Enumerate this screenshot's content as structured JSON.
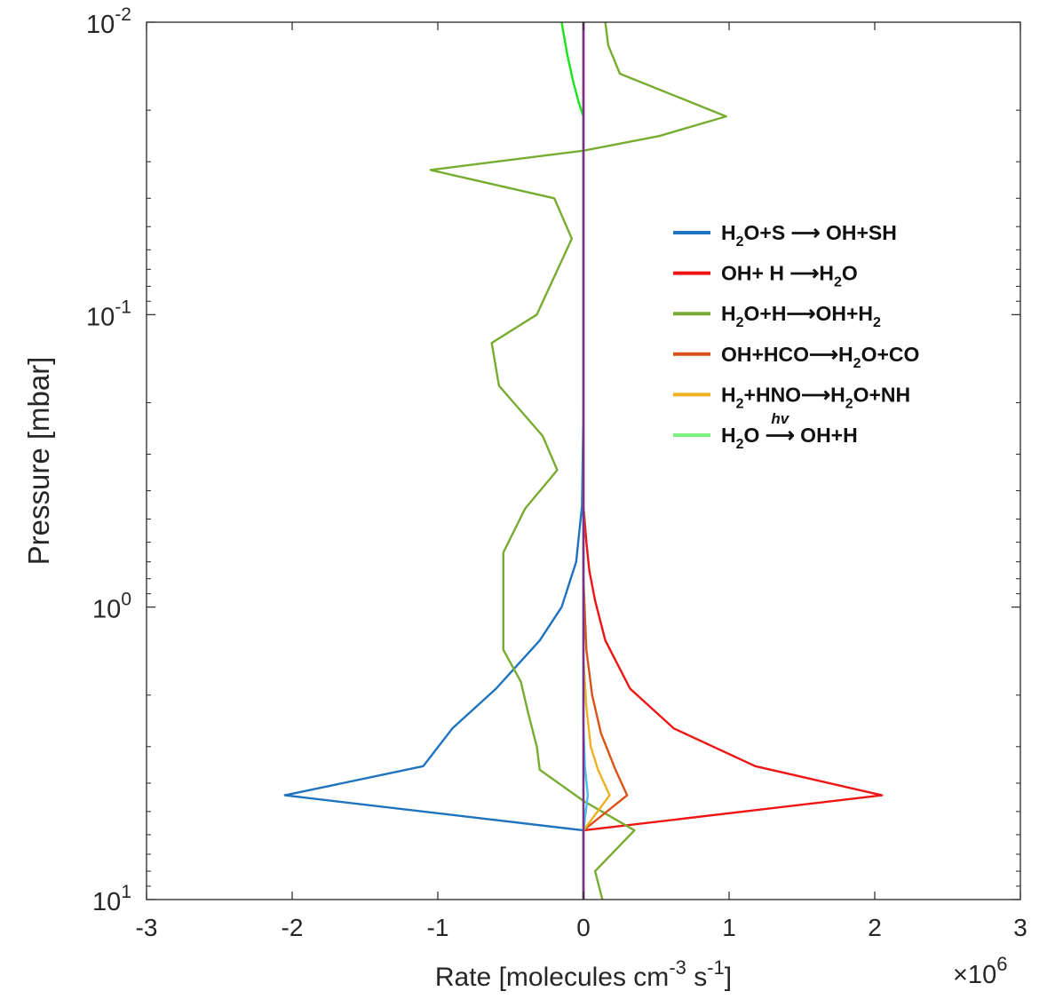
{
  "chart_data": {
    "type": "line",
    "orientation": "vertical-profile",
    "title": "",
    "xlabel": "Rate [molecules cm-3 s-1]",
    "xlabel_parts": {
      "pre": "Rate [molecules cm",
      "sup1": "-3",
      "mid": " s",
      "sup2": "-1",
      "post": "]"
    },
    "x_multiplier": {
      "base": "×10",
      "exp": "6"
    },
    "ylabel": "Pressure [mbar]",
    "xlim": [
      -3,
      3
    ],
    "ylim": [
      0.01,
      10
    ],
    "yscale": "log",
    "y_reversed": true,
    "xticks": [
      {
        "value": -3,
        "label": "-3"
      },
      {
        "value": -2,
        "label": "-2"
      },
      {
        "value": -1,
        "label": "-1"
      },
      {
        "value": 0,
        "label": "0"
      },
      {
        "value": 1,
        "label": "1"
      },
      {
        "value": 2,
        "label": "2"
      },
      {
        "value": 3,
        "label": "3"
      }
    ],
    "yticks": [
      {
        "value": 0.01,
        "base": "10",
        "exp": "-2"
      },
      {
        "value": 0.1,
        "base": "10",
        "exp": "-1"
      },
      {
        "value": 1,
        "base": "10",
        "exp": "0"
      },
      {
        "value": 10,
        "base": "10",
        "exp": "1"
      }
    ],
    "grid": false,
    "legend_position": "right",
    "series": [
      {
        "name": "H2O+S → OH+SH",
        "legend": {
          "parts": [
            {
              "t": "H"
            },
            {
              "t": "2",
              "sub": true
            },
            {
              "t": "O+S "
            },
            {
              "t": "⟶",
              "arrow": true
            },
            {
              "t": " OH+SH"
            }
          ]
        },
        "color": "#1f72bd",
        "points": [
          [
            0,
            0.01
          ],
          [
            0,
            0.2
          ],
          [
            -0.01,
            0.45
          ],
          [
            -0.05,
            0.7
          ],
          [
            -0.15,
            1.0
          ],
          [
            -0.3,
            1.3
          ],
          [
            -0.6,
            1.9
          ],
          [
            -0.9,
            2.6
          ],
          [
            -1.1,
            3.5
          ],
          [
            -2.05,
            4.4
          ],
          [
            0,
            5.8
          ],
          [
            0,
            10
          ]
        ]
      },
      {
        "name": "OH+ H →H2O",
        "legend": {
          "parts": [
            {
              "t": "OH+ H "
            },
            {
              "t": "⟶",
              "arrow": true
            },
            {
              "t": "H"
            },
            {
              "t": "2",
              "sub": true
            },
            {
              "t": "O"
            }
          ]
        },
        "color": "#ee1414",
        "points": [
          [
            0,
            0.01
          ],
          [
            0,
            0.45
          ],
          [
            0.02,
            0.6
          ],
          [
            0.04,
            0.75
          ],
          [
            0.08,
            0.95
          ],
          [
            0.15,
            1.3
          ],
          [
            0.32,
            1.9
          ],
          [
            0.62,
            2.6
          ],
          [
            1.18,
            3.5
          ],
          [
            2.05,
            4.4
          ],
          [
            0,
            5.8
          ],
          [
            0,
            10
          ]
        ]
      },
      {
        "name": "H2O+H→OH+H2",
        "legend": {
          "parts": [
            {
              "t": "H"
            },
            {
              "t": "2",
              "sub": true
            },
            {
              "t": "O+H"
            },
            {
              "t": "⟶",
              "arrow": true
            },
            {
              "t": "OH+H"
            },
            {
              "t": "2",
              "sub": true
            }
          ]
        },
        "color": "#77ac30",
        "points": [
          [
            0.15,
            0.01
          ],
          [
            0.17,
            0.012
          ],
          [
            0.25,
            0.015
          ],
          [
            0.98,
            0.021
          ],
          [
            0.52,
            0.0245
          ],
          [
            0,
            0.0275
          ],
          [
            -1.05,
            0.032
          ],
          [
            -0.2,
            0.04
          ],
          [
            -0.08,
            0.055
          ],
          [
            -0.32,
            0.1
          ],
          [
            -0.63,
            0.125
          ],
          [
            -0.58,
            0.175
          ],
          [
            -0.28,
            0.26
          ],
          [
            -0.18,
            0.34
          ],
          [
            -0.4,
            0.46
          ],
          [
            -0.55,
            0.65
          ],
          [
            -0.55,
            1.0
          ],
          [
            -0.55,
            1.4
          ],
          [
            -0.43,
            1.8
          ],
          [
            -0.38,
            2.3
          ],
          [
            -0.32,
            3.0
          ],
          [
            -0.3,
            3.6
          ],
          [
            0,
            4.6
          ],
          [
            0.35,
            5.8
          ],
          [
            0.08,
            8.0
          ],
          [
            0.13,
            10
          ]
        ]
      },
      {
        "name": "OH+HCO→H2O+CO",
        "legend": {
          "parts": [
            {
              "t": "OH+HCO"
            },
            {
              "t": "⟶",
              "arrow": true
            },
            {
              "t": "H"
            },
            {
              "t": "2",
              "sub": true
            },
            {
              "t": "O+CO"
            }
          ]
        },
        "color": "#d95319",
        "points": [
          [
            0,
            0.01
          ],
          [
            0,
            0.8
          ],
          [
            0.02,
            1.4
          ],
          [
            0.06,
            2.0
          ],
          [
            0.12,
            2.7
          ],
          [
            0.22,
            3.6
          ],
          [
            0.3,
            4.4
          ],
          [
            0,
            5.8
          ],
          [
            0,
            10
          ]
        ]
      },
      {
        "name": "H2+HNO→H2O+NH",
        "legend": {
          "parts": [
            {
              "t": "H"
            },
            {
              "t": "2",
              "sub": true
            },
            {
              "t": "+HNO"
            },
            {
              "t": "⟶",
              "arrow": true
            },
            {
              "t": "H"
            },
            {
              "t": "2",
              "sub": true
            },
            {
              "t": "O+NH"
            }
          ]
        },
        "color": "#edb120",
        "points": [
          [
            0,
            0.01
          ],
          [
            0,
            1.5
          ],
          [
            0.02,
            2.2
          ],
          [
            0.05,
            3.0
          ],
          [
            0.1,
            3.6
          ],
          [
            0.18,
            4.4
          ],
          [
            0,
            5.8
          ],
          [
            0,
            10
          ]
        ]
      },
      {
        "name": "H2O →hv OH+H",
        "legend": {
          "parts": [
            {
              "t": "H"
            },
            {
              "t": "2",
              "sub": true
            },
            {
              "t": "O "
            },
            {
              "t": "⟶",
              "arrow": true,
              "over": "hv"
            },
            {
              "t": " OH+H"
            }
          ]
        },
        "color": "#19e619",
        "legend_color": "#7df07d",
        "points": [
          [
            -0.15,
            0.01
          ],
          [
            -0.11,
            0.013
          ],
          [
            -0.07,
            0.016
          ],
          [
            -0.03,
            0.019
          ],
          [
            0,
            0.021
          ],
          [
            0,
            10
          ]
        ]
      },
      {
        "name": "(unlabeled blue)",
        "legend": null,
        "color": "#4dbeee",
        "points": [
          [
            0,
            0.01
          ],
          [
            0,
            2.5
          ],
          [
            0.01,
            3.5
          ],
          [
            0.03,
            4.4
          ],
          [
            0,
            5.8
          ],
          [
            0,
            10
          ]
        ]
      },
      {
        "name": "(unlabeled purple)",
        "legend": null,
        "color": "#7e2f8e",
        "points": [
          [
            0,
            0.01
          ],
          [
            0,
            10
          ]
        ]
      }
    ]
  }
}
